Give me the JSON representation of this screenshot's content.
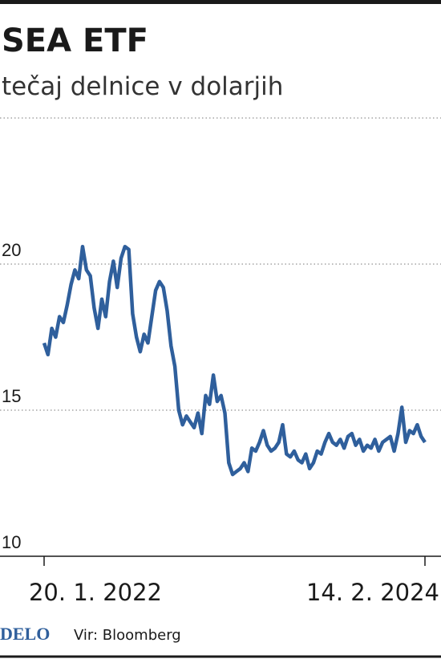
{
  "chart_data": {
    "type": "line",
    "title": "SEA ETF",
    "subtitle": "tečaj delnice v dolarjih",
    "source": "Vir: Bloomberg",
    "brand": "DELO",
    "categories": [
      "20. 1. 2022",
      null,
      null,
      null,
      null,
      null,
      null,
      null,
      null,
      null,
      null,
      null,
      null,
      null,
      null,
      null,
      null,
      null,
      null,
      null,
      null,
      null,
      null,
      null,
      null,
      null,
      null,
      null,
      null,
      null,
      null,
      null,
      null,
      null,
      null,
      null,
      null,
      null,
      null,
      null,
      null,
      null,
      null,
      null,
      null,
      null,
      null,
      null,
      null,
      null,
      null,
      null,
      null,
      null,
      null,
      null,
      null,
      null,
      null,
      null,
      null,
      null,
      null,
      null,
      null,
      null,
      null,
      null,
      null,
      null,
      null,
      null,
      null,
      null,
      null,
      null,
      null,
      null,
      null,
      null,
      null,
      null,
      null,
      null,
      null,
      null,
      null,
      null,
      null,
      null,
      null,
      null,
      null,
      null,
      null,
      null,
      null,
      null,
      null,
      "14. 2. 2024"
    ],
    "series": [
      {
        "name": "SEA ETF",
        "color": "#2f5f9c",
        "values": [
          17.3,
          16.9,
          17.8,
          17.5,
          18.2,
          18.0,
          18.6,
          19.3,
          19.8,
          19.5,
          20.6,
          19.8,
          19.6,
          18.5,
          17.8,
          18.8,
          18.2,
          19.4,
          20.1,
          19.2,
          20.2,
          20.6,
          20.5,
          18.3,
          17.5,
          17.0,
          17.6,
          17.3,
          18.2,
          19.1,
          19.4,
          19.2,
          18.4,
          17.2,
          16.5,
          15.0,
          14.5,
          14.8,
          14.6,
          14.4,
          14.9,
          14.2,
          15.5,
          15.2,
          16.2,
          15.3,
          15.5,
          14.9,
          13.2,
          12.8,
          12.9,
          13.0,
          13.2,
          12.9,
          13.7,
          13.6,
          13.9,
          14.3,
          13.8,
          13.6,
          13.7,
          13.9,
          14.5,
          13.5,
          13.4,
          13.6,
          13.3,
          13.2,
          13.5,
          13.0,
          13.2,
          13.6,
          13.5,
          13.9,
          14.2,
          13.9,
          13.8,
          14.0,
          13.7,
          14.1,
          14.2,
          13.8,
          14.0,
          13.6,
          13.8,
          13.7,
          14.0,
          13.6,
          13.9,
          14.0,
          14.1,
          13.6,
          14.2,
          15.1,
          13.9,
          14.3,
          14.2,
          14.5,
          14.1,
          13.9
        ]
      }
    ],
    "ylim": [
      10,
      25
    ],
    "yticks": [
      10,
      15,
      20
    ],
    "grid": true
  }
}
